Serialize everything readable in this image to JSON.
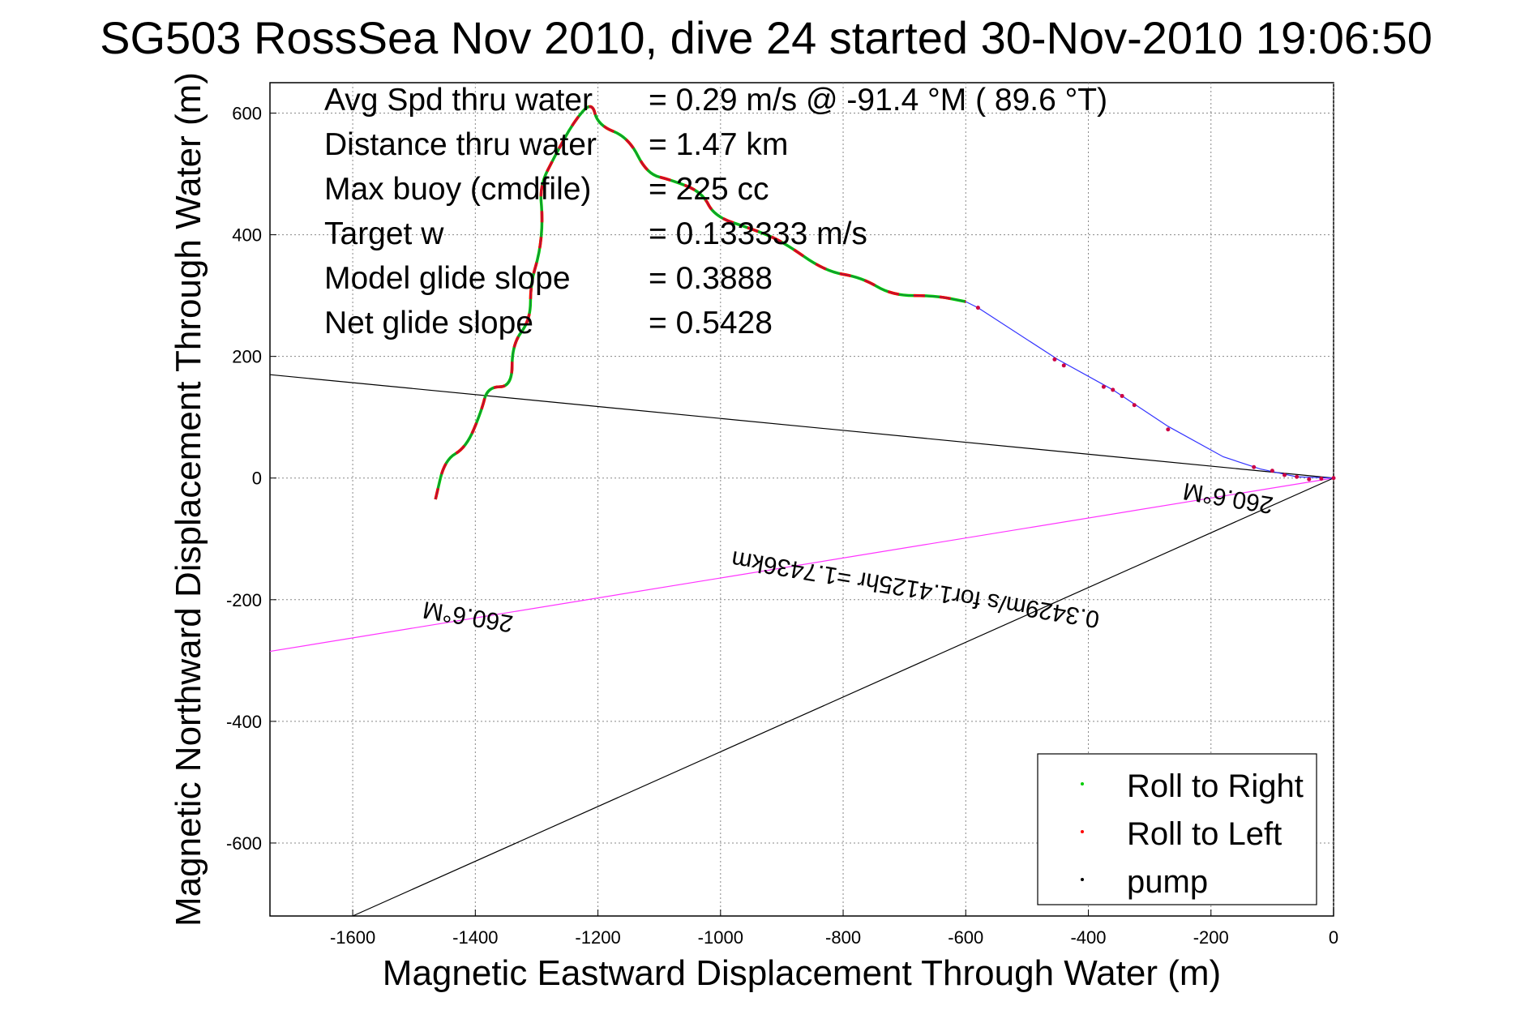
{
  "chart_data": {
    "type": "line",
    "title": "SG503 RossSea Nov 2010, dive 24 started 30-Nov-2010 19:06:50",
    "xlabel": "Magnetic Eastward Displacement Through Water (m)",
    "ylabel": "Magnetic Northward Displacement Through Water (m)",
    "xlim": [
      -1735,
      0
    ],
    "ylim": [
      -720,
      650
    ],
    "xticks": [
      -1600,
      -1400,
      -1200,
      -1000,
      -800,
      -600,
      -400,
      -200,
      0
    ],
    "yticks": [
      600,
      400,
      200,
      0,
      -200,
      -400,
      -600
    ],
    "grid": true,
    "legend_position": "bottom-right",
    "legend": [
      {
        "label": "Roll to Right",
        "color": "#00cc00"
      },
      {
        "label": "Roll to Left",
        "color": "#ff0000"
      },
      {
        "label": "pump",
        "color": "#000000"
      }
    ],
    "info": [
      {
        "label": "Avg Spd thru water",
        "value": "=  0.29 m/s @ -91.4 °M ( 89.6 °T)"
      },
      {
        "label": "Distance thru water",
        "value": "=  1.47 km"
      },
      {
        "label": "Max buoy (cmdfile)",
        "value": "= 225 cc"
      },
      {
        "label": "Target w",
        "value": "= 0.133333 m/s"
      },
      {
        "label": "Model glide slope",
        "value": "= 0.3888"
      },
      {
        "label": "Net glide slope",
        "value": "= 0.5428"
      }
    ],
    "track": {
      "wiggle_points": [
        [
          -1465,
          -35
        ],
        [
          -1450,
          30
        ],
        [
          -1415,
          50
        ],
        [
          -1390,
          110
        ],
        [
          -1380,
          150
        ],
        [
          -1340,
          150
        ],
        [
          -1340,
          220
        ],
        [
          -1310,
          260
        ],
        [
          -1310,
          320
        ],
        [
          -1295,
          370
        ],
        [
          -1290,
          425
        ],
        [
          -1295,
          480
        ],
        [
          -1270,
          530
        ],
        [
          -1240,
          585
        ],
        [
          -1210,
          620
        ],
        [
          -1200,
          580
        ],
        [
          -1150,
          560
        ],
        [
          -1120,
          500
        ],
        [
          -1080,
          490
        ],
        [
          -1030,
          470
        ],
        [
          -1010,
          430
        ],
        [
          -950,
          410
        ],
        [
          -900,
          390
        ],
        [
          -830,
          340
        ],
        [
          -770,
          330
        ],
        [
          -720,
          300
        ],
        [
          -650,
          300
        ],
        [
          -600,
          290
        ]
      ],
      "smooth_points": [
        [
          -600,
          290
        ],
        [
          -580,
          280
        ],
        [
          -450,
          195
        ],
        [
          -360,
          145
        ],
        [
          -270,
          85
        ],
        [
          -180,
          35
        ],
        [
          -120,
          15
        ],
        [
          -60,
          2
        ],
        [
          0,
          0
        ]
      ],
      "smooth_color": "#3333ff",
      "pump_points": [
        [
          -580,
          280
        ],
        [
          -455,
          195
        ],
        [
          -440,
          185
        ],
        [
          -375,
          150
        ],
        [
          -360,
          145
        ],
        [
          -345,
          135
        ],
        [
          -325,
          120
        ],
        [
          -270,
          80
        ],
        [
          -130,
          18
        ],
        [
          -100,
          12
        ],
        [
          -80,
          5
        ],
        [
          -60,
          2
        ],
        [
          -40,
          -2
        ],
        [
          -20,
          -1
        ],
        [
          0,
          0
        ]
      ],
      "wiggle_sign": "Roll to Right / Roll to Left alternating"
    },
    "lines": [
      {
        "name": "ref-line-upper",
        "color": "#000000",
        "points": [
          [
            -1735,
            170
          ],
          [
            0,
            0
          ]
        ]
      },
      {
        "name": "heading-line",
        "color": "#ff33ff",
        "points": [
          [
            -1735,
            -285
          ],
          [
            0,
            0
          ]
        ]
      },
      {
        "name": "ref-line-lower",
        "color": "#000000",
        "points": [
          [
            -1600,
            -720
          ],
          [
            0,
            0
          ]
        ]
      }
    ],
    "annotations": [
      {
        "text": "260.6°M",
        "x": -170,
        "y": -20,
        "rotate": 189.4
      },
      {
        "text": "0.3429m/s for1.4125hr =1.7436km",
        "x": -680,
        "y": -170,
        "rotate": 189.4
      },
      {
        "text": "260.6°M",
        "x": -1410,
        "y": -215,
        "rotate": 189.4
      }
    ]
  }
}
